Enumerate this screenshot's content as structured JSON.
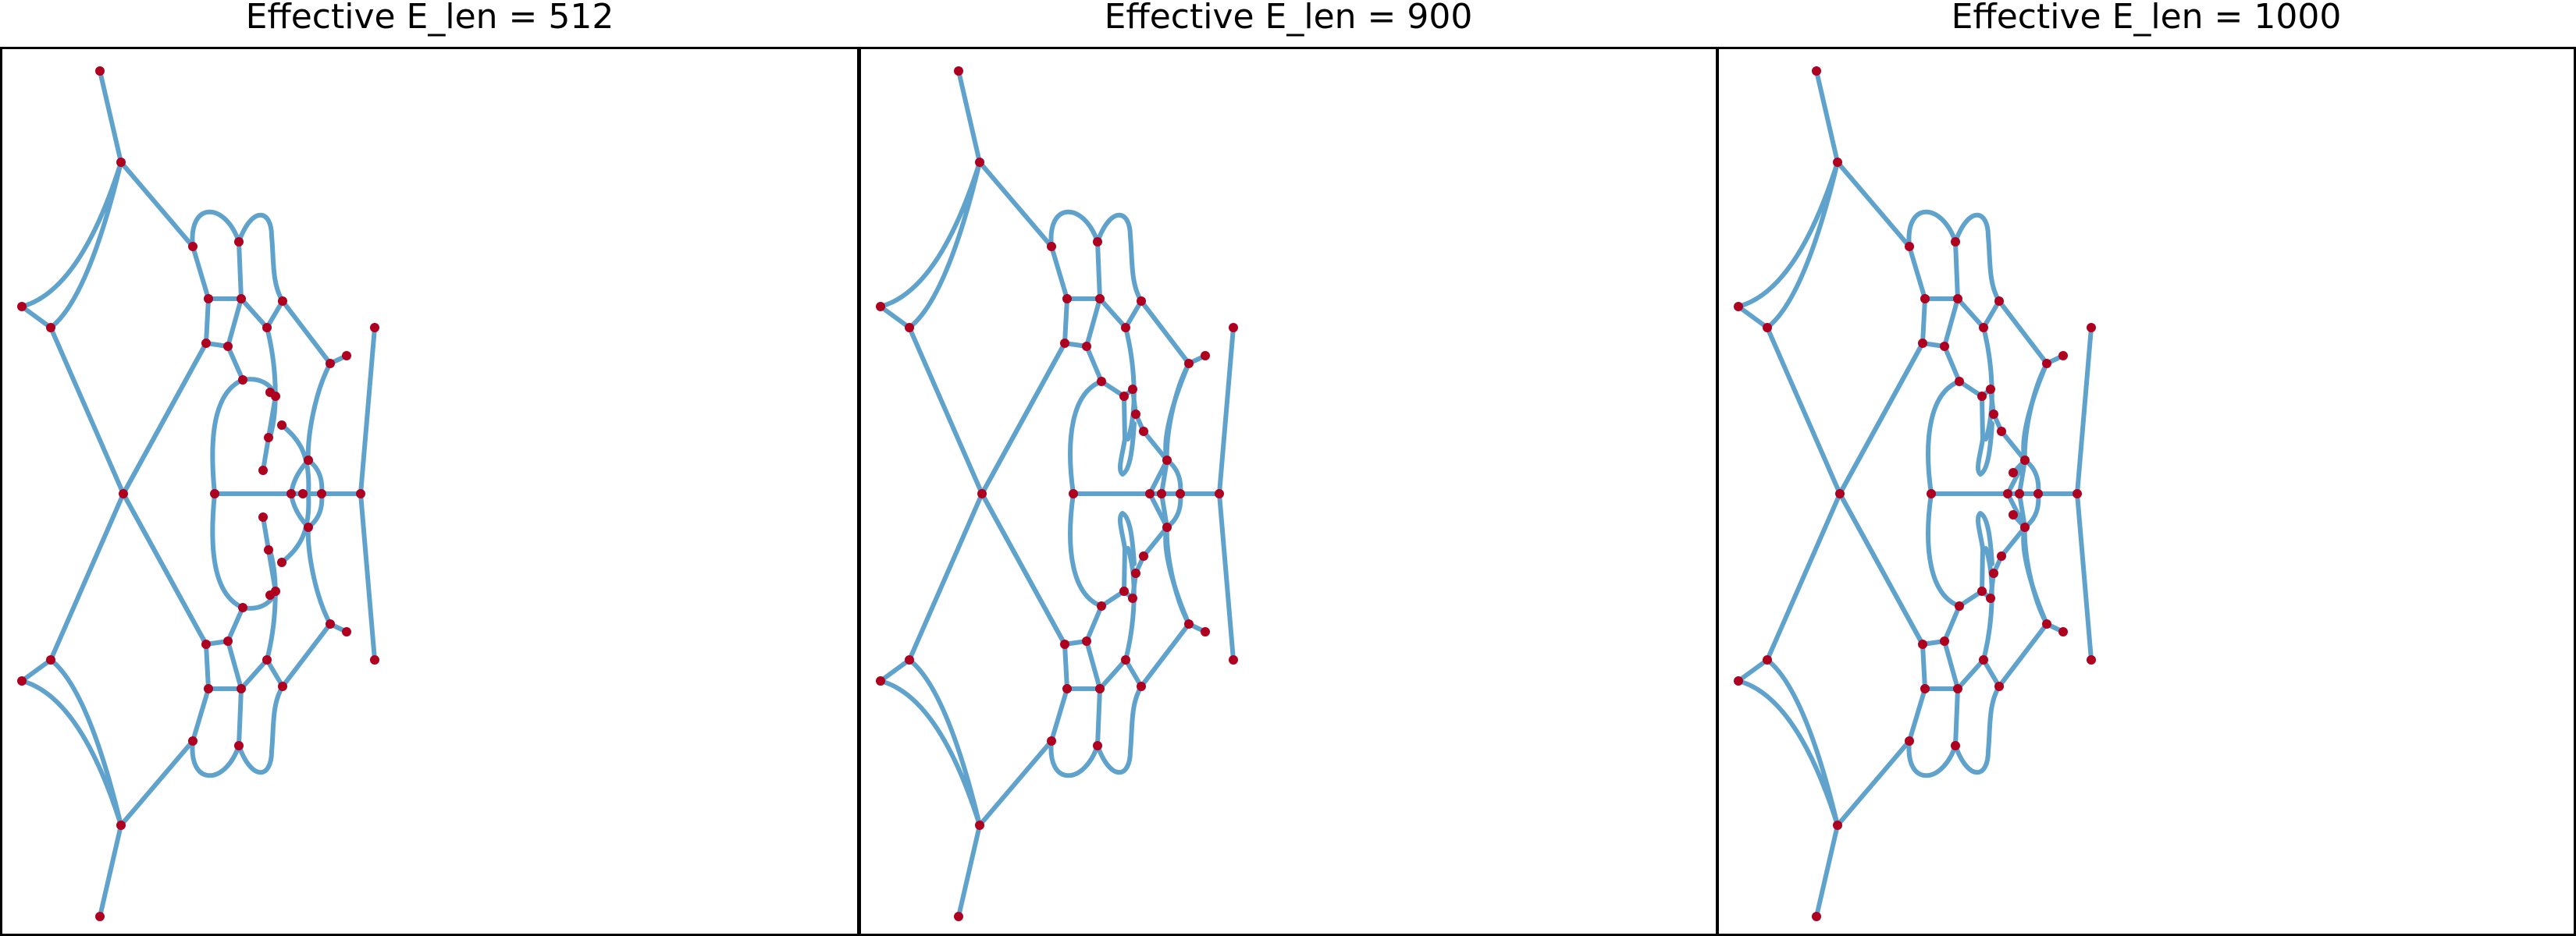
{
  "panels": [
    {
      "title": "Effective E_len = 512",
      "variant": "512"
    },
    {
      "title": "Effective E_len = 900",
      "variant": "900"
    },
    {
      "title": "Effective E_len = 1000",
      "variant": "1000"
    }
  ],
  "colors": {
    "edge": "#5fa3cd",
    "node": "#b00020",
    "frame": "#000000"
  },
  "marks": {
    "edge": "graph-edge",
    "node": "graph-node"
  }
}
